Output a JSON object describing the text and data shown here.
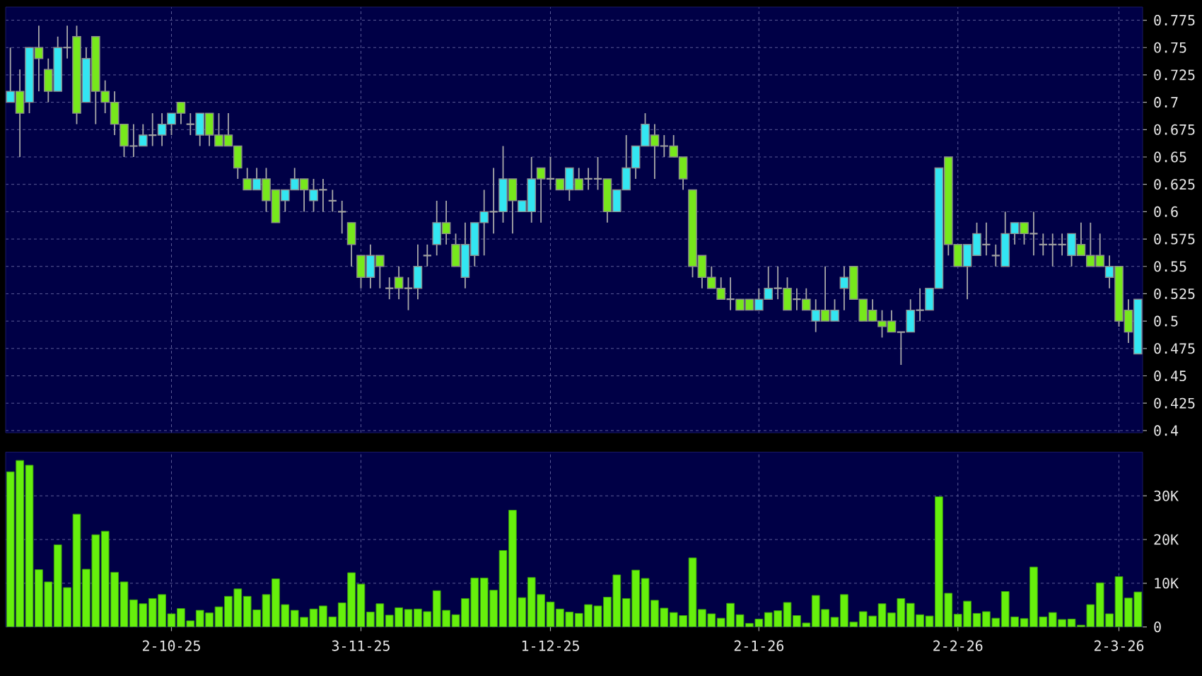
{
  "chart_data": [
    {
      "type": "candlestick",
      "grid": true,
      "tick_labels": "y",
      "categories": [
        null,
        null,
        null,
        null,
        null,
        null,
        null,
        null,
        null,
        null,
        null,
        null,
        null,
        null,
        null,
        null,
        null,
        null,
        null,
        null,
        null,
        null,
        null,
        null,
        null,
        null,
        null,
        null,
        null,
        null,
        null,
        null,
        null,
        null,
        null,
        null,
        null,
        null,
        null,
        null,
        null,
        null,
        null,
        null,
        null,
        null,
        null,
        null,
        null,
        null,
        null,
        null,
        null,
        null,
        null,
        null,
        null,
        null,
        null,
        null,
        null,
        null,
        null,
        null,
        null,
        null,
        null,
        null,
        null,
        null,
        null,
        null,
        null,
        null,
        null,
        null,
        null,
        null,
        null,
        null,
        null,
        null,
        null,
        null,
        null,
        null,
        null,
        null,
        null,
        null,
        null,
        null,
        null,
        null,
        null,
        null,
        null,
        null,
        null,
        null,
        null,
        null,
        null,
        null,
        null,
        null,
        null,
        null,
        null,
        null,
        null,
        null,
        null,
        null,
        null,
        null,
        null,
        null,
        null,
        null
      ],
      "ohlc": [
        [
          0.7,
          0.75,
          0.7,
          0.71
        ],
        [
          0.71,
          0.73,
          0.65,
          0.69
        ],
        [
          0.7,
          0.75,
          0.69,
          0.75
        ],
        [
          0.75,
          0.77,
          0.71,
          0.74
        ],
        [
          0.73,
          0.74,
          0.7,
          0.71
        ],
        [
          0.71,
          0.76,
          0.71,
          0.75
        ],
        [
          0.75,
          0.77,
          0.74,
          0.75
        ],
        [
          0.76,
          0.77,
          0.68,
          0.69
        ],
        [
          0.7,
          0.75,
          0.7,
          0.74
        ],
        [
          0.76,
          0.76,
          0.68,
          0.71
        ],
        [
          0.71,
          0.72,
          0.69,
          0.7
        ],
        [
          0.7,
          0.71,
          0.67,
          0.68
        ],
        [
          0.68,
          0.68,
          0.65,
          0.66
        ],
        [
          0.66,
          0.68,
          0.65,
          0.66
        ],
        [
          0.66,
          0.68,
          0.66,
          0.67
        ],
        [
          0.67,
          0.69,
          0.66,
          0.67
        ],
        [
          0.67,
          0.69,
          0.66,
          0.68
        ],
        [
          0.68,
          0.69,
          0.67,
          0.69
        ],
        [
          0.7,
          0.7,
          0.68,
          0.69
        ],
        [
          0.68,
          0.69,
          0.67,
          0.68
        ],
        [
          0.67,
          0.69,
          0.66,
          0.69
        ],
        [
          0.69,
          0.69,
          0.66,
          0.67
        ],
        [
          0.67,
          0.69,
          0.66,
          0.66
        ],
        [
          0.67,
          0.69,
          0.66,
          0.66
        ],
        [
          0.66,
          0.66,
          0.63,
          0.64
        ],
        [
          0.63,
          0.64,
          0.62,
          0.62
        ],
        [
          0.62,
          0.64,
          0.62,
          0.63
        ],
        [
          0.63,
          0.64,
          0.6,
          0.61
        ],
        [
          0.62,
          0.62,
          0.59,
          0.59
        ],
        [
          0.61,
          0.62,
          0.6,
          0.62
        ],
        [
          0.62,
          0.64,
          0.62,
          0.63
        ],
        [
          0.63,
          0.63,
          0.6,
          0.62
        ],
        [
          0.61,
          0.63,
          0.6,
          0.62
        ],
        [
          0.62,
          0.63,
          0.6,
          0.62
        ],
        [
          0.61,
          0.62,
          0.6,
          0.61
        ],
        [
          0.6,
          0.61,
          0.58,
          0.6
        ],
        [
          0.59,
          0.59,
          0.55,
          0.57
        ],
        [
          0.56,
          0.56,
          0.53,
          0.54
        ],
        [
          0.54,
          0.57,
          0.53,
          0.56
        ],
        [
          0.56,
          0.56,
          0.53,
          0.55
        ],
        [
          0.53,
          0.54,
          0.52,
          0.53
        ],
        [
          0.54,
          0.55,
          0.52,
          0.53
        ],
        [
          0.53,
          0.54,
          0.51,
          0.53
        ],
        [
          0.53,
          0.57,
          0.52,
          0.55
        ],
        [
          0.56,
          0.57,
          0.55,
          0.56
        ],
        [
          0.57,
          0.61,
          0.56,
          0.59
        ],
        [
          0.59,
          0.61,
          0.57,
          0.58
        ],
        [
          0.57,
          0.58,
          0.55,
          0.55
        ],
        [
          0.54,
          0.59,
          0.53,
          0.57
        ],
        [
          0.56,
          0.59,
          0.55,
          0.59
        ],
        [
          0.59,
          0.62,
          0.56,
          0.6
        ],
        [
          0.6,
          0.64,
          0.58,
          0.6
        ],
        [
          0.6,
          0.66,
          0.59,
          0.63
        ],
        [
          0.63,
          0.63,
          0.58,
          0.61
        ],
        [
          0.6,
          0.61,
          0.6,
          0.61
        ],
        [
          0.6,
          0.65,
          0.59,
          0.63
        ],
        [
          0.64,
          0.64,
          0.59,
          0.63
        ],
        [
          0.63,
          0.65,
          0.62,
          0.63
        ],
        [
          0.63,
          0.63,
          0.62,
          0.62
        ],
        [
          0.62,
          0.64,
          0.61,
          0.64
        ],
        [
          0.63,
          0.64,
          0.62,
          0.62
        ],
        [
          0.63,
          0.64,
          0.62,
          0.63
        ],
        [
          0.63,
          0.65,
          0.62,
          0.63
        ],
        [
          0.63,
          0.63,
          0.59,
          0.6
        ],
        [
          0.6,
          0.62,
          0.6,
          0.62
        ],
        [
          0.62,
          0.67,
          0.62,
          0.64
        ],
        [
          0.64,
          0.66,
          0.63,
          0.66
        ],
        [
          0.66,
          0.69,
          0.66,
          0.68
        ],
        [
          0.67,
          0.68,
          0.63,
          0.66
        ],
        [
          0.66,
          0.67,
          0.65,
          0.66
        ],
        [
          0.66,
          0.67,
          0.65,
          0.65
        ],
        [
          0.65,
          0.65,
          0.62,
          0.63
        ],
        [
          0.62,
          0.62,
          0.54,
          0.55
        ],
        [
          0.56,
          0.56,
          0.53,
          0.54
        ],
        [
          0.54,
          0.55,
          0.53,
          0.53
        ],
        [
          0.53,
          0.54,
          0.52,
          0.52
        ],
        [
          0.52,
          0.54,
          0.51,
          0.52
        ],
        [
          0.52,
          0.52,
          0.51,
          0.51
        ],
        [
          0.52,
          0.52,
          0.51,
          0.51
        ],
        [
          0.51,
          0.53,
          0.51,
          0.52
        ],
        [
          0.52,
          0.55,
          0.52,
          0.53
        ],
        [
          0.53,
          0.55,
          0.52,
          0.53
        ],
        [
          0.53,
          0.54,
          0.51,
          0.51
        ],
        [
          0.52,
          0.53,
          0.51,
          0.52
        ],
        [
          0.52,
          0.53,
          0.51,
          0.51
        ],
        [
          0.5,
          0.52,
          0.49,
          0.51
        ],
        [
          0.51,
          0.55,
          0.5,
          0.5
        ],
        [
          0.5,
          0.52,
          0.5,
          0.51
        ],
        [
          0.53,
          0.55,
          0.51,
          0.54
        ],
        [
          0.55,
          0.55,
          0.52,
          0.52
        ],
        [
          0.52,
          0.52,
          0.5,
          0.5
        ],
        [
          0.51,
          0.52,
          0.5,
          0.5
        ],
        [
          0.5,
          0.51,
          0.485,
          0.495
        ],
        [
          0.5,
          0.51,
          0.49,
          0.49
        ],
        [
          0.49,
          0.49,
          0.46,
          0.49
        ],
        [
          0.49,
          0.52,
          0.49,
          0.51
        ],
        [
          0.51,
          0.53,
          0.5,
          0.51
        ],
        [
          0.51,
          0.53,
          0.51,
          0.53
        ],
        [
          0.53,
          0.64,
          0.53,
          0.64
        ],
        [
          0.65,
          0.65,
          0.56,
          0.57
        ],
        [
          0.57,
          0.57,
          0.55,
          0.55
        ],
        [
          0.55,
          0.57,
          0.52,
          0.57
        ],
        [
          0.56,
          0.59,
          0.56,
          0.58
        ],
        [
          0.57,
          0.59,
          0.56,
          0.57
        ],
        [
          0.56,
          0.57,
          0.55,
          0.56
        ],
        [
          0.55,
          0.6,
          0.55,
          0.58
        ],
        [
          0.58,
          0.59,
          0.57,
          0.59
        ],
        [
          0.59,
          0.59,
          0.57,
          0.58
        ],
        [
          0.58,
          0.6,
          0.56,
          0.58
        ],
        [
          0.57,
          0.58,
          0.56,
          0.57
        ],
        [
          0.57,
          0.58,
          0.55,
          0.57
        ],
        [
          0.57,
          0.58,
          0.56,
          0.57
        ],
        [
          0.56,
          0.58,
          0.55,
          0.58
        ],
        [
          0.57,
          0.59,
          0.56,
          0.56
        ],
        [
          0.56,
          0.59,
          0.55,
          0.55
        ],
        [
          0.56,
          0.58,
          0.55,
          0.55
        ],
        [
          0.54,
          0.56,
          0.53,
          0.55
        ],
        [
          0.55,
          0.55,
          0.495,
          0.5
        ],
        [
          0.51,
          0.52,
          0.48,
          0.49
        ],
        [
          0.47,
          0.52,
          0.47,
          0.52
        ]
      ],
      "colors": [
        "#33e6f2",
        "#77e81c",
        "#33e6f2",
        "#77e81c",
        "#77e81c",
        "#33e6f2",
        "#a0a0a0",
        "#77e81c",
        "#33e6f2",
        "#77e81c",
        "#77e81c",
        "#77e81c",
        "#77e81c",
        "#a0a0a0",
        "#33e6f2",
        "#a0a0a0",
        "#33e6f2",
        "#33e6f2",
        "#77e81c",
        "#a0a0a0",
        "#33e6f2",
        "#77e81c",
        "#77e81c",
        "#77e81c",
        "#77e81c",
        "#77e81c",
        "#33e6f2",
        "#77e81c",
        "#77e81c",
        "#33e6f2",
        "#33e6f2",
        "#77e81c",
        "#33e6f2",
        "#a0a0a0",
        "#a0a0a0",
        "#a0a0a0",
        "#77e81c",
        "#77e81c",
        "#33e6f2",
        "#77e81c",
        "#a0a0a0",
        "#77e81c",
        "#a0a0a0",
        "#33e6f2",
        "#a0a0a0",
        "#33e6f2",
        "#77e81c",
        "#77e81c",
        "#33e6f2",
        "#33e6f2",
        "#33e6f2",
        "#a0a0a0",
        "#33e6f2",
        "#77e81c",
        "#33e6f2",
        "#33e6f2",
        "#77e81c",
        "#a0a0a0",
        "#77e81c",
        "#33e6f2",
        "#77e81c",
        "#a0a0a0",
        "#a0a0a0",
        "#77e81c",
        "#33e6f2",
        "#33e6f2",
        "#33e6f2",
        "#33e6f2",
        "#77e81c",
        "#a0a0a0",
        "#77e81c",
        "#77e81c",
        "#77e81c",
        "#77e81c",
        "#77e81c",
        "#77e81c",
        "#a0a0a0",
        "#77e81c",
        "#77e81c",
        "#33e6f2",
        "#33e6f2",
        "#a0a0a0",
        "#77e81c",
        "#a0a0a0",
        "#77e81c",
        "#33e6f2",
        "#77e81c",
        "#33e6f2",
        "#33e6f2",
        "#77e81c",
        "#77e81c",
        "#77e81c",
        "#77e81c",
        "#77e81c",
        "#a0a0a0",
        "#33e6f2",
        "#a0a0a0",
        "#33e6f2",
        "#33e6f2",
        "#77e81c",
        "#77e81c",
        "#33e6f2",
        "#33e6f2",
        "#a0a0a0",
        "#a0a0a0",
        "#33e6f2",
        "#33e6f2",
        "#77e81c",
        "#a0a0a0",
        "#a0a0a0",
        "#a0a0a0",
        "#a0a0a0",
        "#33e6f2",
        "#77e81c",
        "#77e81c",
        "#77e81c",
        "#33e6f2",
        "#77e81c",
        "#77e81c",
        "#33e6f2"
      ],
      "ylim": [
        0.398,
        0.787
      ],
      "yticks": [
        0.4,
        0.425,
        0.45,
        0.475,
        0.5,
        0.525,
        0.55,
        0.575,
        0.6,
        0.625,
        0.65,
        0.675,
        0.7,
        0.725,
        0.75,
        0.775
      ]
    },
    {
      "type": "bar",
      "grid": true,
      "color": "#66f00c",
      "categories": [
        null,
        null,
        null,
        null,
        null,
        null,
        null,
        null,
        null,
        null,
        null,
        null,
        null,
        null,
        null,
        null,
        null,
        "2-10-25",
        null,
        null,
        null,
        null,
        null,
        null,
        null,
        null,
        null,
        null,
        null,
        null,
        null,
        null,
        null,
        null,
        null,
        null,
        null,
        "3-11-25",
        null,
        null,
        null,
        null,
        null,
        null,
        null,
        null,
        null,
        null,
        null,
        null,
        null,
        null,
        null,
        null,
        null,
        null,
        null,
        "1-12-25",
        null,
        null,
        null,
        null,
        null,
        null,
        null,
        null,
        null,
        null,
        null,
        null,
        null,
        null,
        null,
        null,
        null,
        null,
        null,
        null,
        null,
        "2-1-26",
        null,
        null,
        null,
        null,
        null,
        null,
        null,
        null,
        null,
        null,
        null,
        null,
        null,
        null,
        null,
        null,
        null,
        null,
        null,
        null,
        "2-2-26",
        null,
        null,
        null,
        null,
        null,
        null,
        null,
        null,
        null,
        null,
        null,
        null,
        null,
        null,
        null,
        null,
        "2-3-26",
        null,
        null
      ],
      "values": [
        35500,
        38100,
        37000,
        13100,
        10300,
        18800,
        9000,
        25800,
        13200,
        21100,
        21900,
        12500,
        10300,
        6200,
        5300,
        6500,
        7400,
        3000,
        4200,
        1400,
        3800,
        3200,
        4600,
        7000,
        8700,
        7000,
        3900,
        7400,
        11000,
        5100,
        3800,
        2200,
        4100,
        4800,
        2300,
        5500,
        12400,
        9800,
        3400,
        5300,
        2700,
        4400,
        4000,
        4100,
        3500,
        8300,
        3800,
        2800,
        6500,
        11200,
        11200,
        8400,
        17500,
        26700,
        6700,
        11300,
        7400,
        5700,
        4100,
        3400,
        3100,
        5100,
        4800,
        6800,
        11900,
        6500,
        13000,
        11100,
        6100,
        4300,
        3300,
        2600,
        15800,
        4000,
        3000,
        2000,
        5400,
        2800,
        800,
        1800,
        3300,
        3700,
        5600,
        2600,
        900,
        7200,
        4000,
        2200,
        7400,
        1100,
        3500,
        2500,
        5300,
        3200,
        6500,
        5400,
        2800,
        2500,
        29800,
        7700,
        2900,
        5900,
        3100,
        3500,
        2000,
        8100,
        2300,
        1900,
        13700,
        2300,
        3300,
        1700,
        1800,
        400,
        5100,
        10100,
        3000,
        11500,
        6600,
        8000
      ],
      "ylim": [
        0,
        40000
      ],
      "yticks": [
        0,
        {
          "value": 10000,
          "label": "10K"
        },
        {
          "value": 20000,
          "label": "20K"
        },
        {
          "value": 30000,
          "label": "30K"
        }
      ]
    }
  ]
}
